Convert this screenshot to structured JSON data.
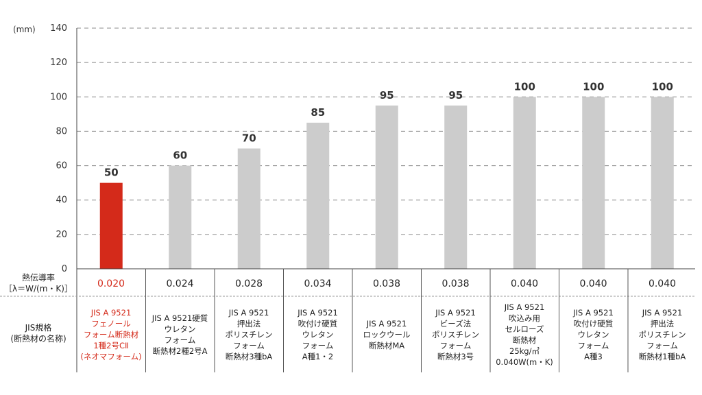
{
  "chart_data": {
    "type": "bar",
    "unit": "(mm)",
    "ylim": [
      0,
      140
    ],
    "yticks": [
      "0",
      "20",
      "40",
      "60",
      "80",
      "100",
      "120",
      "140"
    ],
    "grid": true,
    "values": [
      50,
      60,
      70,
      85,
      95,
      95,
      100,
      100,
      100
    ],
    "value_labels": [
      "50",
      "60",
      "70",
      "85",
      "95",
      "95",
      "100",
      "100",
      "100"
    ],
    "highlight_index": 0,
    "colors": {
      "highlight": "#d42a1a",
      "bar": "#cccccc",
      "grid": "#888888"
    }
  },
  "table": {
    "row1_header": [
      "熱伝導率",
      "［λ＝W/(m・K)］"
    ],
    "row2_header": [
      "JIS規格",
      "(断熱材の名称)"
    ],
    "conductivity": [
      "0.020",
      "0.024",
      "0.028",
      "0.034",
      "0.038",
      "0.038",
      "0.040",
      "0.040",
      "0.040"
    ],
    "names": [
      [
        "JIS A 9521",
        "フェノール",
        "フォーム断熱材",
        "1種2号CⅡ",
        "(ネオマフォーム)"
      ],
      [
        "JIS A 9521硬質",
        "ウレタン",
        "フォーム",
        "断熱材2種2号A"
      ],
      [
        "JIS A 9521",
        "押出法",
        "ポリスチレン",
        "フォーム",
        "断熱材3種bA"
      ],
      [
        "JIS A 9521",
        "吹付け硬質",
        "ウレタン",
        "フォーム",
        "A種1・2"
      ],
      [
        "JIS A 9521",
        "ロックウール",
        "断熱材MA"
      ],
      [
        "JIS A 9521",
        "ビーズ法",
        "ポリスチレン",
        "フォーム",
        "断熱材3号"
      ],
      [
        "JIS A 9521",
        "吹込み用",
        "セルローズ",
        "断熱材",
        "25kg/㎥",
        "0.040W(m・K)"
      ],
      [
        "JIS A 9521",
        "吹付け硬質",
        "ウレタン",
        "フォーム",
        "A種3"
      ],
      [
        "JIS A 9521",
        "押出法",
        "ポリスチレン",
        "フォーム",
        "断熱材1種bA"
      ]
    ]
  }
}
